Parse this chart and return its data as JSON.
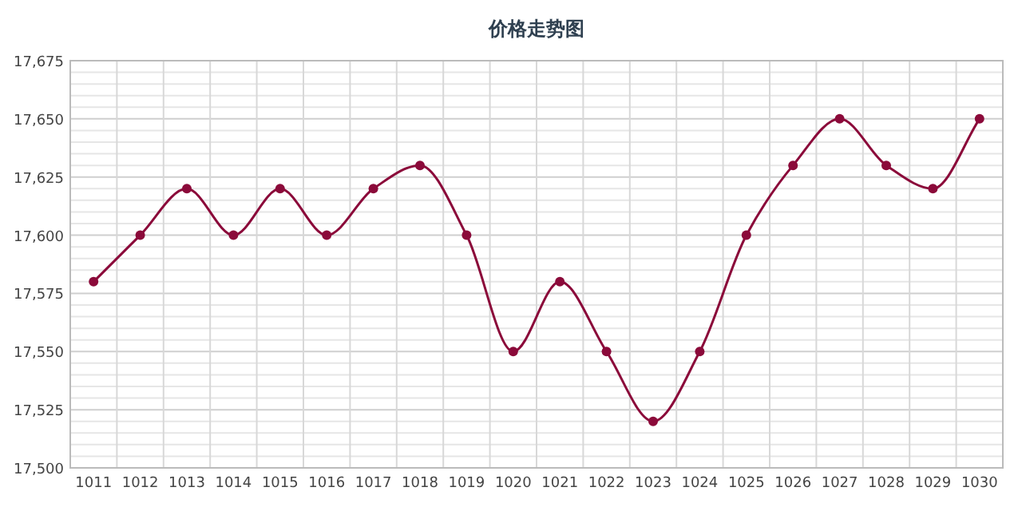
{
  "chart_data": {
    "type": "line",
    "title": "价格走势图",
    "categories": [
      "1011",
      "1012",
      "1013",
      "1014",
      "1015",
      "1016",
      "1017",
      "1018",
      "1019",
      "1020",
      "1021",
      "1022",
      "1023",
      "1024",
      "1025",
      "1026",
      "1027",
      "1028",
      "1029",
      "1030"
    ],
    "series": [
      {
        "color": "#8b0a3a",
        "values": [
          17580,
          17600,
          17620,
          17600,
          17620,
          17600,
          17620,
          17630,
          17600,
          17550,
          17580,
          17550,
          17520,
          17550,
          17600,
          17630,
          17650,
          17630,
          17620,
          17650
        ]
      }
    ],
    "ylim": [
      17500,
      17675
    ],
    "yticks": [
      {
        "value": 17500,
        "label": "17,500"
      },
      {
        "value": 17525,
        "label": "17,525"
      },
      {
        "value": 17550,
        "label": "17,550"
      },
      {
        "value": 17575,
        "label": "17,575"
      },
      {
        "value": 17600,
        "label": "17,600"
      },
      {
        "value": 17625,
        "label": "17,625"
      },
      {
        "value": 17650,
        "label": "17,650"
      },
      {
        "value": 17675,
        "label": "17,675"
      }
    ],
    "grid": true,
    "marker": "circle"
  }
}
